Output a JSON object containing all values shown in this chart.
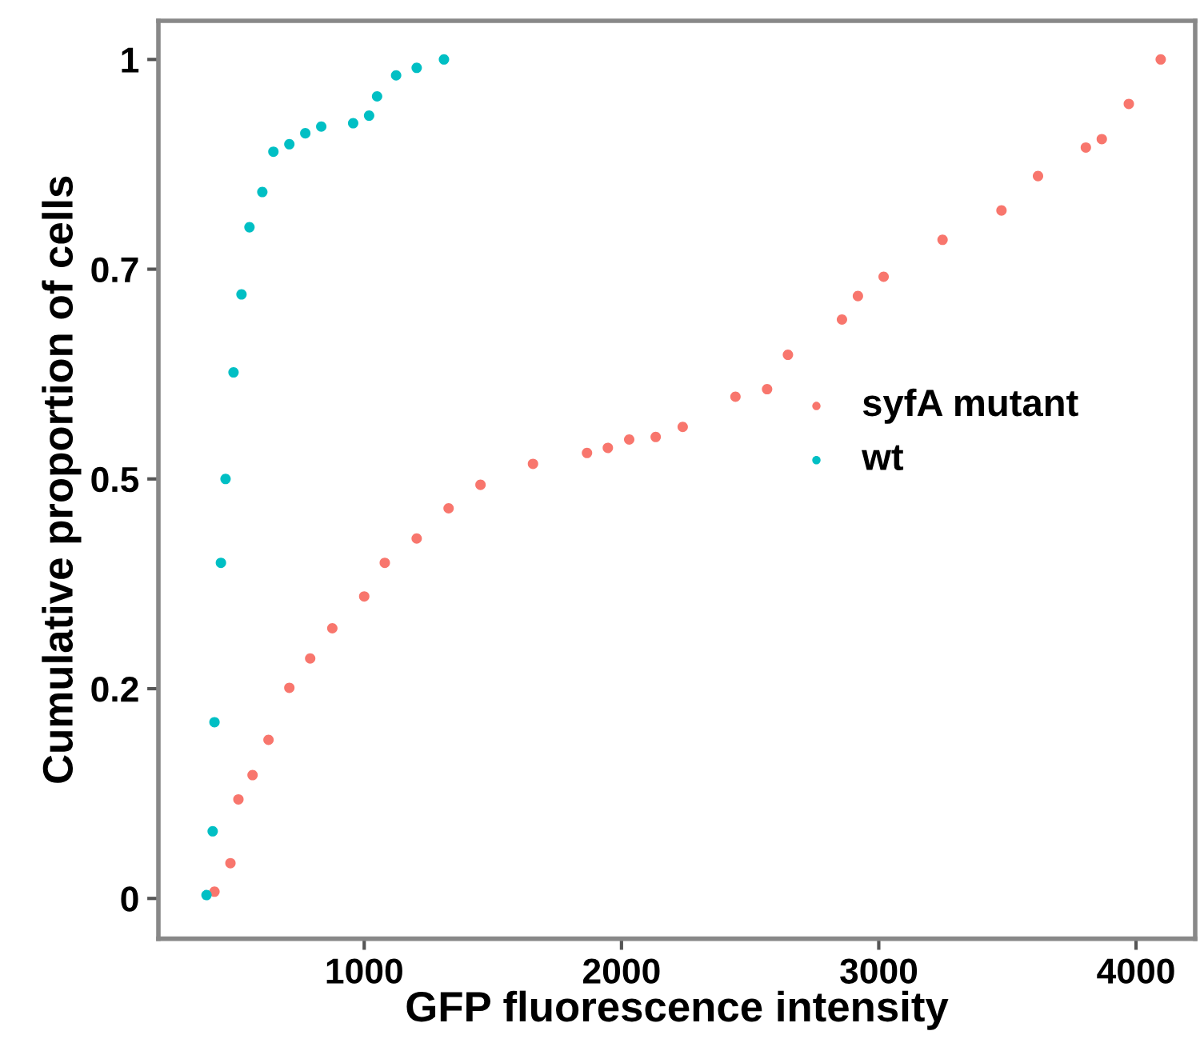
{
  "chart_data": {
    "type": "scatter",
    "xlabel": "GFP fluorescence intensity",
    "ylabel": "Cumulative proportion of cells",
    "xlim": [
      200,
      4230
    ],
    "ylim": [
      -0.048,
      1.046
    ],
    "xticks": [
      1000,
      2000,
      3000,
      4000
    ],
    "yticks": [
      0,
      {
        "value": 0.25,
        "label": "0.2"
      },
      0.5,
      {
        "value": 0.75,
        "label": "0.7"
      },
      1
    ],
    "marker": "circle",
    "grid": false,
    "legend": "right",
    "series": [
      {
        "name": "syfA mutant",
        "color": "#f8766d",
        "x": [
          418,
          480,
          511,
          566,
          628,
          709,
          790,
          876,
          1000,
          1080,
          1204,
          1328,
          1452,
          1656,
          1866,
          1947,
          2030,
          2133,
          2238,
          2443,
          2566,
          2647,
          2857,
          2919,
          3019,
          3248,
          3477,
          3619,
          3805,
          3867,
          3972,
          4096
        ],
        "values": [
          0.008,
          0.042,
          0.118,
          0.147,
          0.189,
          0.251,
          0.286,
          0.322,
          0.36,
          0.4,
          0.429,
          0.465,
          0.493,
          0.518,
          0.531,
          0.537,
          0.547,
          0.55,
          0.562,
          0.598,
          0.607,
          0.648,
          0.69,
          0.718,
          0.741,
          0.785,
          0.82,
          0.861,
          0.895,
          0.905,
          0.947,
          1.0
        ]
      },
      {
        "name": "wt",
        "color": "#00bfc4",
        "x": [
          387,
          411,
          418,
          443,
          461,
          492,
          523,
          554,
          604,
          647,
          709,
          771,
          833,
          957,
          1019,
          1050,
          1124,
          1204,
          1310
        ],
        "values": [
          0.004,
          0.08,
          0.21,
          0.4,
          0.5,
          0.627,
          0.72,
          0.8,
          0.842,
          0.89,
          0.899,
          0.912,
          0.92,
          0.924,
          0.933,
          0.956,
          0.981,
          0.99,
          1.0
        ]
      }
    ]
  }
}
